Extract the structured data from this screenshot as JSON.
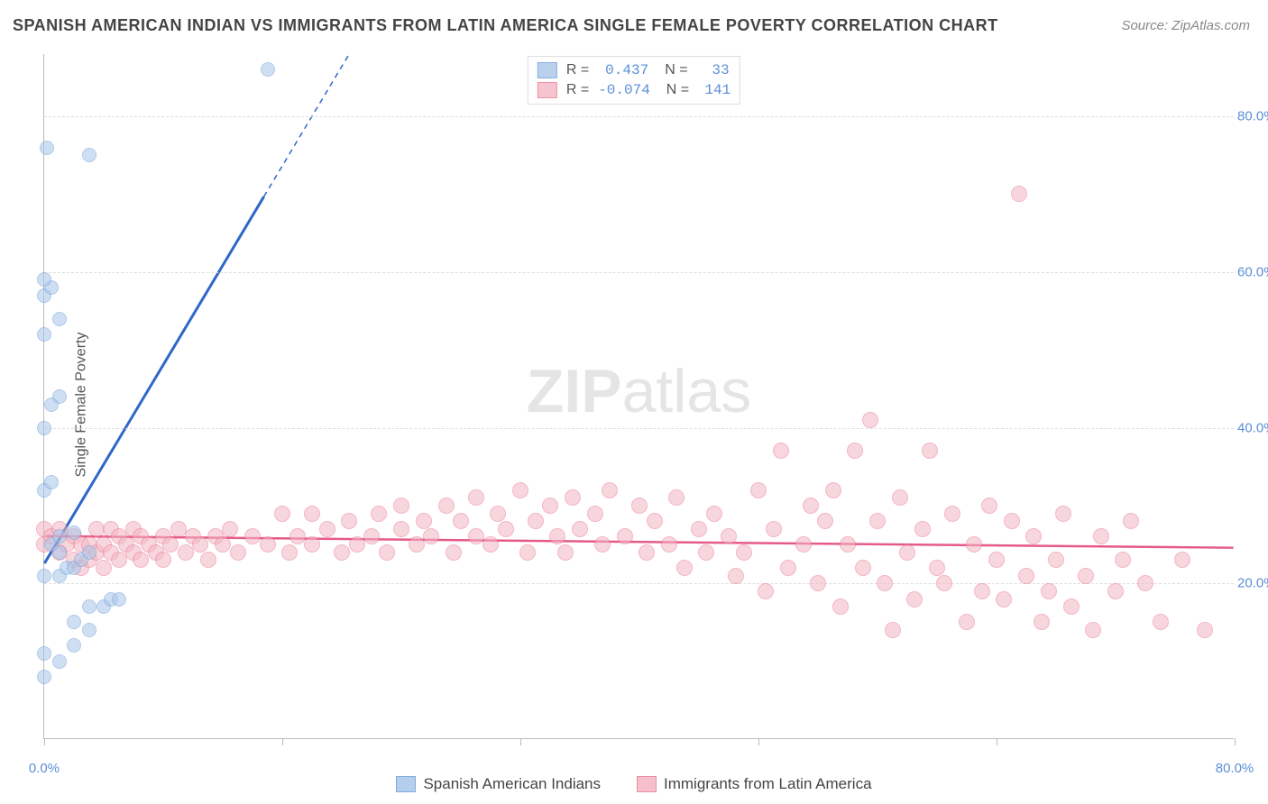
{
  "title": "SPANISH AMERICAN INDIAN VS IMMIGRANTS FROM LATIN AMERICA SINGLE FEMALE POVERTY CORRELATION CHART",
  "source": "Source: ZipAtlas.com",
  "y_axis_title": "Single Female Poverty",
  "watermark_zip": "ZIP",
  "watermark_atlas": "atlas",
  "chart": {
    "type": "scatter",
    "xlim": [
      0,
      80
    ],
    "ylim": [
      0,
      88
    ],
    "x_ticks": [
      0,
      16,
      32,
      48,
      64,
      80
    ],
    "x_tick_labels": {
      "0": "0.0%",
      "80": "80.0%"
    },
    "y_ticks": [
      20,
      40,
      60,
      80
    ],
    "y_tick_labels": {
      "20": "20.0%",
      "40": "40.0%",
      "60": "60.0%",
      "80": "80.0%"
    },
    "grid_color": "#dddddd",
    "axis_color": "#bbbbbb",
    "background_color": "#ffffff",
    "series": [
      {
        "name": "Spanish American Indians",
        "color_fill": "#a9c6ea",
        "color_fill_opacity": 0.55,
        "color_stroke": "#6f9ed8",
        "marker_radius": 8,
        "r": "0.437",
        "n": "33",
        "trend": {
          "x1": 0,
          "y1": 22.5,
          "x2": 20.5,
          "y2": 88,
          "color": "#2f67c9",
          "width": 3,
          "dash_ext": true
        },
        "points": [
          [
            0,
            8
          ],
          [
            1,
            10
          ],
          [
            0,
            11
          ],
          [
            2,
            12
          ],
          [
            3,
            14
          ],
          [
            2,
            15
          ],
          [
            4,
            17
          ],
          [
            3,
            17
          ],
          [
            4.5,
            18
          ],
          [
            5,
            18
          ],
          [
            0,
            21
          ],
          [
            1,
            21
          ],
          [
            1.5,
            22
          ],
          [
            2,
            22
          ],
          [
            2.5,
            23
          ],
          [
            3,
            24
          ],
          [
            1,
            24
          ],
          [
            0.5,
            25
          ],
          [
            1,
            26
          ],
          [
            2,
            26.5
          ],
          [
            0,
            32
          ],
          [
            0.5,
            33
          ],
          [
            0,
            40
          ],
          [
            0.5,
            43
          ],
          [
            1,
            44
          ],
          [
            0,
            52
          ],
          [
            1,
            54
          ],
          [
            0,
            57
          ],
          [
            0.5,
            58
          ],
          [
            0,
            59
          ],
          [
            3,
            75
          ],
          [
            0.2,
            76
          ],
          [
            15,
            86
          ]
        ]
      },
      {
        "name": "Immigrants from Latin America",
        "color_fill": "#f4b6c3",
        "color_fill_opacity": 0.55,
        "color_stroke": "#e87b96",
        "marker_radius": 9,
        "r": "-0.074",
        "n": "141",
        "trend": {
          "x1": 0,
          "y1": 26,
          "x2": 80,
          "y2": 24.5,
          "color": "#e65a86",
          "width": 2.5,
          "dash_ext": false
        },
        "points": [
          [
            0,
            25
          ],
          [
            0,
            27
          ],
          [
            0.5,
            26
          ],
          [
            1,
            24
          ],
          [
            1,
            27
          ],
          [
            1.5,
            25
          ],
          [
            2,
            23
          ],
          [
            2,
            26
          ],
          [
            2.5,
            22
          ],
          [
            2.5,
            25
          ],
          [
            3,
            23
          ],
          [
            3,
            25
          ],
          [
            3.5,
            24
          ],
          [
            3.5,
            27
          ],
          [
            4,
            22
          ],
          [
            4,
            25
          ],
          [
            4.5,
            24
          ],
          [
            4.5,
            27
          ],
          [
            5,
            23
          ],
          [
            5,
            26
          ],
          [
            5.5,
            25
          ],
          [
            6,
            24
          ],
          [
            6,
            27
          ],
          [
            6.5,
            23
          ],
          [
            6.5,
            26
          ],
          [
            7,
            25
          ],
          [
            7.5,
            24
          ],
          [
            8,
            26
          ],
          [
            8,
            23
          ],
          [
            8.5,
            25
          ],
          [
            9,
            27
          ],
          [
            9.5,
            24
          ],
          [
            10,
            26
          ],
          [
            10.5,
            25
          ],
          [
            11,
            23
          ],
          [
            11.5,
            26
          ],
          [
            12,
            25
          ],
          [
            12.5,
            27
          ],
          [
            13,
            24
          ],
          [
            14,
            26
          ],
          [
            15,
            25
          ],
          [
            16,
            29
          ],
          [
            16.5,
            24
          ],
          [
            17,
            26
          ],
          [
            18,
            25
          ],
          [
            18,
            29
          ],
          [
            19,
            27
          ],
          [
            20,
            24
          ],
          [
            20.5,
            28
          ],
          [
            21,
            25
          ],
          [
            22,
            26
          ],
          [
            22.5,
            29
          ],
          [
            23,
            24
          ],
          [
            24,
            27
          ],
          [
            24,
            30
          ],
          [
            25,
            25
          ],
          [
            25.5,
            28
          ],
          [
            26,
            26
          ],
          [
            27,
            30
          ],
          [
            27.5,
            24
          ],
          [
            28,
            28
          ],
          [
            29,
            26
          ],
          [
            29,
            31
          ],
          [
            30,
            25
          ],
          [
            30.5,
            29
          ],
          [
            31,
            27
          ],
          [
            32,
            32
          ],
          [
            32.5,
            24
          ],
          [
            33,
            28
          ],
          [
            34,
            30
          ],
          [
            34.5,
            26
          ],
          [
            35,
            24
          ],
          [
            35.5,
            31
          ],
          [
            36,
            27
          ],
          [
            37,
            29
          ],
          [
            37.5,
            25
          ],
          [
            38,
            32
          ],
          [
            39,
            26
          ],
          [
            40,
            30
          ],
          [
            40.5,
            24
          ],
          [
            41,
            28
          ],
          [
            42,
            25
          ],
          [
            42.5,
            31
          ],
          [
            43,
            22
          ],
          [
            44,
            27
          ],
          [
            44.5,
            24
          ],
          [
            45,
            29
          ],
          [
            46,
            26
          ],
          [
            46.5,
            21
          ],
          [
            47,
            24
          ],
          [
            48,
            32
          ],
          [
            48.5,
            19
          ],
          [
            49,
            27
          ],
          [
            49.5,
            37
          ],
          [
            50,
            22
          ],
          [
            51,
            25
          ],
          [
            51.5,
            30
          ],
          [
            52,
            20
          ],
          [
            52.5,
            28
          ],
          [
            53,
            32
          ],
          [
            53.5,
            17
          ],
          [
            54,
            25
          ],
          [
            54.5,
            37
          ],
          [
            55,
            22
          ],
          [
            55.5,
            41
          ],
          [
            56,
            28
          ],
          [
            56.5,
            20
          ],
          [
            57,
            14
          ],
          [
            57.5,
            31
          ],
          [
            58,
            24
          ],
          [
            58.5,
            18
          ],
          [
            59,
            27
          ],
          [
            59.5,
            37
          ],
          [
            60,
            22
          ],
          [
            60.5,
            20
          ],
          [
            61,
            29
          ],
          [
            62,
            15
          ],
          [
            62.5,
            25
          ],
          [
            63,
            19
          ],
          [
            63.5,
            30
          ],
          [
            64,
            23
          ],
          [
            64.5,
            18
          ],
          [
            65,
            28
          ],
          [
            65.5,
            70
          ],
          [
            66,
            21
          ],
          [
            66.5,
            26
          ],
          [
            67,
            15
          ],
          [
            67.5,
            19
          ],
          [
            68,
            23
          ],
          [
            68.5,
            29
          ],
          [
            69,
            17
          ],
          [
            70,
            21
          ],
          [
            70.5,
            14
          ],
          [
            71,
            26
          ],
          [
            72,
            19
          ],
          [
            72.5,
            23
          ],
          [
            73,
            28
          ],
          [
            74,
            20
          ],
          [
            75,
            15
          ],
          [
            76.5,
            23
          ],
          [
            78,
            14
          ]
        ]
      }
    ]
  },
  "legend_bottom": [
    {
      "label": "Spanish American Indians",
      "fill": "#a9c6ea",
      "stroke": "#6f9ed8"
    },
    {
      "label": "Immigrants from Latin America",
      "fill": "#f4b6c3",
      "stroke": "#e87b96"
    }
  ]
}
